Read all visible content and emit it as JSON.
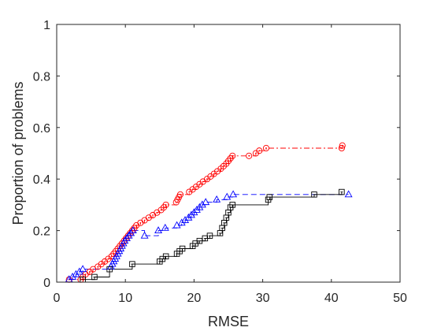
{
  "chart_data": {
    "type": "line",
    "title": "",
    "xlabel": "RMSE",
    "ylabel": "Proportion of problems",
    "xlim": [
      0,
      50
    ],
    "ylim": [
      0,
      1
    ],
    "xticks": [
      0,
      10,
      20,
      30,
      40,
      50
    ],
    "yticks": [
      0,
      0.2,
      0.4,
      0.6,
      0.8,
      1
    ],
    "xtick_labels": [
      "0",
      "10",
      "20",
      "30",
      "40",
      "50"
    ],
    "ytick_labels": [
      "0",
      "0.2",
      "0.4",
      "0.6",
      "0.8",
      "1"
    ],
    "grid": false,
    "legend": "none",
    "series": [
      {
        "color": "#ff0000",
        "line_style": "dash-dot",
        "marker": "circle",
        "points": [
          [
            1.8,
            0.01
          ],
          [
            3.5,
            0.01
          ],
          [
            3.8,
            0.02
          ],
          [
            4.2,
            0.03
          ],
          [
            4.8,
            0.04
          ],
          [
            5.3,
            0.05
          ],
          [
            6.0,
            0.06
          ],
          [
            6.5,
            0.07
          ],
          [
            7.0,
            0.08
          ],
          [
            7.5,
            0.09
          ],
          [
            8.0,
            0.1
          ],
          [
            8.3,
            0.11
          ],
          [
            8.6,
            0.12
          ],
          [
            8.9,
            0.13
          ],
          [
            9.2,
            0.14
          ],
          [
            9.5,
            0.15
          ],
          [
            9.8,
            0.16
          ],
          [
            10.1,
            0.17
          ],
          [
            10.4,
            0.18
          ],
          [
            10.7,
            0.19
          ],
          [
            11.0,
            0.2
          ],
          [
            11.3,
            0.21
          ],
          [
            11.6,
            0.22
          ],
          [
            12.2,
            0.23
          ],
          [
            12.8,
            0.24
          ],
          [
            13.4,
            0.25
          ],
          [
            14.0,
            0.26
          ],
          [
            14.6,
            0.27
          ],
          [
            15.2,
            0.28
          ],
          [
            15.6,
            0.29
          ],
          [
            15.9,
            0.3
          ],
          [
            17.4,
            0.31
          ],
          [
            17.6,
            0.32
          ],
          [
            17.8,
            0.33
          ],
          [
            18.0,
            0.34
          ],
          [
            19.3,
            0.35
          ],
          [
            19.8,
            0.36
          ],
          [
            20.3,
            0.37
          ],
          [
            20.8,
            0.38
          ],
          [
            21.3,
            0.39
          ],
          [
            21.9,
            0.4
          ],
          [
            22.4,
            0.41
          ],
          [
            22.9,
            0.42
          ],
          [
            23.4,
            0.43
          ],
          [
            23.9,
            0.44
          ],
          [
            24.3,
            0.45
          ],
          [
            24.7,
            0.46
          ],
          [
            25.0,
            0.47
          ],
          [
            25.3,
            0.48
          ],
          [
            25.6,
            0.49
          ],
          [
            28.0,
            0.49
          ],
          [
            29.0,
            0.5
          ],
          [
            29.5,
            0.51
          ],
          [
            30.5,
            0.52
          ],
          [
            41.5,
            0.52
          ],
          [
            41.6,
            0.53
          ]
        ]
      },
      {
        "color": "#0000ff",
        "line_style": "dashed",
        "marker": "triangle",
        "points": [
          [
            1.8,
            0.01
          ],
          [
            2.3,
            0.02
          ],
          [
            2.8,
            0.03
          ],
          [
            3.3,
            0.04
          ],
          [
            3.8,
            0.05
          ],
          [
            7.9,
            0.06
          ],
          [
            8.1,
            0.07
          ],
          [
            8.3,
            0.08
          ],
          [
            8.5,
            0.09
          ],
          [
            8.7,
            0.1
          ],
          [
            8.9,
            0.11
          ],
          [
            9.1,
            0.12
          ],
          [
            9.3,
            0.13
          ],
          [
            9.5,
            0.14
          ],
          [
            9.7,
            0.15
          ],
          [
            9.9,
            0.16
          ],
          [
            10.2,
            0.17
          ],
          [
            10.5,
            0.18
          ],
          [
            10.8,
            0.19
          ],
          [
            11.1,
            0.2
          ],
          [
            12.8,
            0.18
          ],
          [
            14.8,
            0.2
          ],
          [
            15.8,
            0.21
          ],
          [
            17.5,
            0.22
          ],
          [
            18.2,
            0.23
          ],
          [
            18.7,
            0.24
          ],
          [
            19.2,
            0.25
          ],
          [
            19.6,
            0.26
          ],
          [
            20.0,
            0.27
          ],
          [
            20.4,
            0.28
          ],
          [
            20.8,
            0.29
          ],
          [
            21.2,
            0.3
          ],
          [
            21.7,
            0.31
          ],
          [
            23.3,
            0.32
          ],
          [
            24.8,
            0.33
          ],
          [
            25.7,
            0.34
          ],
          [
            42.5,
            0.34
          ]
        ]
      },
      {
        "color": "#000000",
        "line_style": "solid",
        "marker": "square",
        "points": [
          [
            3.8,
            0.01
          ],
          [
            5.5,
            0.02
          ],
          [
            7.7,
            0.05
          ],
          [
            11.0,
            0.07
          ],
          [
            15.0,
            0.08
          ],
          [
            15.4,
            0.09
          ],
          [
            15.9,
            0.1
          ],
          [
            17.5,
            0.11
          ],
          [
            17.9,
            0.12
          ],
          [
            18.3,
            0.13
          ],
          [
            19.8,
            0.14
          ],
          [
            20.2,
            0.15
          ],
          [
            20.8,
            0.16
          ],
          [
            21.6,
            0.17
          ],
          [
            22.3,
            0.18
          ],
          [
            23.8,
            0.19
          ],
          [
            24.1,
            0.21
          ],
          [
            24.4,
            0.23
          ],
          [
            24.7,
            0.25
          ],
          [
            25.0,
            0.27
          ],
          [
            25.3,
            0.29
          ],
          [
            25.6,
            0.3
          ],
          [
            30.8,
            0.32
          ],
          [
            31.0,
            0.33
          ],
          [
            37.5,
            0.34
          ],
          [
            41.5,
            0.35
          ]
        ]
      }
    ]
  }
}
